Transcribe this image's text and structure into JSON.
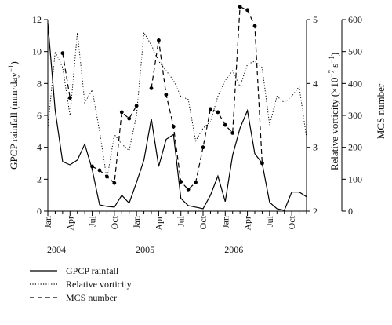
{
  "chart_data": {
    "type": "line",
    "x_labels": [
      "Jan",
      "Apr",
      "Jul",
      "Oct",
      "Jan",
      "Apr",
      "Jul",
      "Oct",
      "Jan",
      "Apr",
      "Jul",
      "Oct"
    ],
    "year_labels": [
      "2004",
      "2005",
      "2006"
    ],
    "axes": {
      "left": {
        "title": "GPCP rainfall (mm·day",
        "title_sup": "−1",
        "title_tail": ")",
        "ylim": [
          0,
          12
        ],
        "ticks": [
          0,
          2,
          4,
          6,
          8,
          10,
          12
        ]
      },
      "right_inner": {
        "title": "Relative vorticity (×10",
        "title_sup1": "−7",
        "title_mid": " s",
        "title_sup2": "−1",
        "title_tail": ")",
        "ylim": [
          2,
          5
        ],
        "ticks": [
          2,
          3,
          4,
          5
        ]
      },
      "right_outer": {
        "title": "MCS number",
        "ylim": [
          0,
          600
        ],
        "ticks": [
          0,
          100,
          200,
          300,
          400,
          500,
          600
        ]
      }
    },
    "series": [
      {
        "name": "GPCP rainfall",
        "axis": "left",
        "style": "solid",
        "values": [
          11.8,
          6.3,
          3.1,
          2.9,
          3.2,
          4.2,
          2.6,
          0.4,
          0.3,
          0.25,
          1.0,
          0.5,
          1.8,
          3.2,
          5.8,
          2.8,
          4.5,
          4.8,
          0.8,
          0.35,
          0.25,
          0.15,
          1.0,
          2.2,
          0.6,
          3.5,
          5.2,
          6.3,
          3.6,
          3.0,
          0.55,
          0.15,
          0.05,
          1.2,
          1.2,
          0.9
        ]
      },
      {
        "name": "Relative vorticity",
        "axis": "right_inner",
        "style": "dotted",
        "values": [
          3.3,
          4.5,
          4.25,
          3.5,
          4.8,
          3.7,
          3.9,
          3.25,
          2.5,
          3.2,
          3.05,
          2.95,
          3.5,
          4.8,
          4.6,
          4.35,
          4.2,
          4.05,
          3.8,
          3.75,
          3.1,
          3.3,
          3.4,
          3.8,
          4.05,
          4.2,
          3.95,
          4.3,
          4.35,
          4.25,
          3.35,
          3.8,
          3.7,
          3.8,
          3.95,
          3.15
        ]
      },
      {
        "name": "MCS number",
        "axis": "right_outer",
        "style": "dashed",
        "marker": "dot",
        "values": [
          null,
          null,
          495,
          355,
          null,
          null,
          140,
          128,
          108,
          88,
          310,
          290,
          330,
          null,
          385,
          535,
          365,
          265,
          92,
          68,
          90,
          200,
          320,
          310,
          270,
          245,
          640,
          630,
          580,
          150,
          null,
          null,
          null,
          null,
          null,
          null
        ]
      }
    ],
    "legend": {
      "placement": "bottom-left",
      "items": [
        {
          "label": "GPCP rainfall",
          "style": "solid"
        },
        {
          "label": "Relative vorticity",
          "style": "dotted"
        },
        {
          "label": "MCS number",
          "style": "dashed"
        }
      ]
    },
    "grid": false
  }
}
